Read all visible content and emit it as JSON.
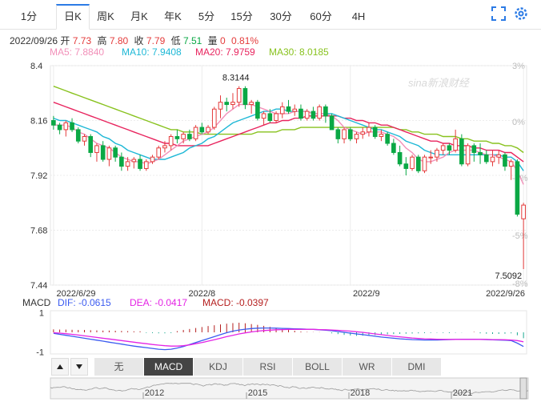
{
  "tabs": [
    "1分",
    "日K",
    "周K",
    "月K",
    "年K",
    "5分",
    "15分",
    "30分",
    "60分",
    "4H"
  ],
  "active_tab": "日K",
  "icons": {
    "fullscreen": "fullscreen-icon",
    "settings": "gear-icon",
    "prev": "triangle-up-icon",
    "next": "triangle-down-icon"
  },
  "quote": {
    "date": "2022/09/26",
    "open_label": "开",
    "open": "7.73",
    "high_label": "高",
    "high": "7.80",
    "close_label": "收",
    "close": "7.79",
    "low_label": "低",
    "low": "7.51",
    "volume_label": "量",
    "volume": "0",
    "change": "0.81%"
  },
  "ma_legend": [
    {
      "label": "MA5: 7.8840",
      "color": "#f290b9"
    },
    {
      "label": "MA10: 7.9408",
      "color": "#1eb8d6"
    },
    {
      "label": "MA20: 7.9759",
      "color": "#e8245e"
    },
    {
      "label": "MA30: 8.0185",
      "color": "#88c21e"
    }
  ],
  "watermark": "sina新浪财经",
  "macd_legend": [
    {
      "label": "MACD",
      "color": "#333333"
    },
    {
      "label": "DIF: -0.0615",
      "color": "#3b5bf0"
    },
    {
      "label": "DEA: -0.0417",
      "color": "#e424e4"
    },
    {
      "label": "MACD: -0.0397",
      "color": "#b51f1f"
    }
  ],
  "indicator_buttons": [
    "无",
    "MACD",
    "KDJ",
    "RSI",
    "BOLL",
    "WR",
    "DMI"
  ],
  "active_indicator": "MACD",
  "overview_years": [
    "2012",
    "2015",
    "2018",
    "2021"
  ],
  "chart_data": {
    "type": "candlestick",
    "y_axis_left": {
      "ticks": [
        "8.4",
        "8.16",
        "7.92",
        "7.68",
        "7.44"
      ],
      "range": [
        7.44,
        8.4
      ]
    },
    "y_axis_right": {
      "ticks": [
        "3%",
        "0%",
        "-3%",
        "-5%",
        "-8%"
      ]
    },
    "x_labels": [
      "2022/6/29",
      "2022/8",
      "2022/9",
      "2022/9/26"
    ],
    "annotations": {
      "max": "8.3144",
      "min": "7.5092"
    },
    "colors": {
      "up": "#e43b3b",
      "down": "#0aa845"
    },
    "candles": [
      [
        8.16,
        8.18,
        8.12,
        8.14
      ],
      [
        8.14,
        8.15,
        8.1,
        8.12
      ],
      [
        8.12,
        8.16,
        8.09,
        8.15
      ],
      [
        8.15,
        8.17,
        8.11,
        8.12
      ],
      [
        8.12,
        8.13,
        8.06,
        8.07
      ],
      [
        8.07,
        8.1,
        8.05,
        8.09
      ],
      [
        8.09,
        8.1,
        8.0,
        8.02
      ],
      [
        8.02,
        8.06,
        7.98,
        8.05
      ],
      [
        8.05,
        8.07,
        7.98,
        7.99
      ],
      [
        7.99,
        8.05,
        7.96,
        8.04
      ],
      [
        8.04,
        8.05,
        7.98,
        8.0
      ],
      [
        8.0,
        8.02,
        7.94,
        7.96
      ],
      [
        7.96,
        8.0,
        7.94,
        7.98
      ],
      [
        7.98,
        8.0,
        7.95,
        7.99
      ],
      [
        7.99,
        8.01,
        7.94,
        7.95
      ],
      [
        7.95,
        7.99,
        7.94,
        7.98
      ],
      [
        7.98,
        8.01,
        7.97,
        8.0
      ],
      [
        8.0,
        8.05,
        7.99,
        8.04
      ],
      [
        8.04,
        8.07,
        8.02,
        8.05
      ],
      [
        8.05,
        8.1,
        8.03,
        8.09
      ],
      [
        8.09,
        8.12,
        8.06,
        8.08
      ],
      [
        8.08,
        8.11,
        8.06,
        8.1
      ],
      [
        8.1,
        8.12,
        8.07,
        8.08
      ],
      [
        8.08,
        8.14,
        8.07,
        8.13
      ],
      [
        8.13,
        8.15,
        8.1,
        8.11
      ],
      [
        8.11,
        8.14,
        8.1,
        8.13
      ],
      [
        8.13,
        8.22,
        8.12,
        8.21
      ],
      [
        8.21,
        8.27,
        8.17,
        8.24
      ],
      [
        8.24,
        8.26,
        8.2,
        8.23
      ],
      [
        8.23,
        8.28,
        8.21,
        8.24
      ],
      [
        8.24,
        8.31,
        8.22,
        8.3
      ],
      [
        8.3,
        8.31,
        8.21,
        8.23
      ],
      [
        8.23,
        8.25,
        8.19,
        8.24
      ],
      [
        8.24,
        8.25,
        8.16,
        8.17
      ],
      [
        8.17,
        8.2,
        8.14,
        8.19
      ],
      [
        8.19,
        8.21,
        8.15,
        8.16
      ],
      [
        8.16,
        8.2,
        8.15,
        8.19
      ],
      [
        8.19,
        8.24,
        8.17,
        8.22
      ],
      [
        8.22,
        8.25,
        8.19,
        8.2
      ],
      [
        8.2,
        8.23,
        8.18,
        8.21
      ],
      [
        8.21,
        8.23,
        8.16,
        8.17
      ],
      [
        8.17,
        8.21,
        8.16,
        8.2
      ],
      [
        8.2,
        8.22,
        8.16,
        8.17
      ],
      [
        8.17,
        8.23,
        8.16,
        8.22
      ],
      [
        8.22,
        8.23,
        8.15,
        8.18
      ],
      [
        8.18,
        8.19,
        8.12,
        8.12
      ],
      [
        8.12,
        8.13,
        8.06,
        8.08
      ],
      [
        8.08,
        8.13,
        8.06,
        8.12
      ],
      [
        8.12,
        8.13,
        8.07,
        8.08
      ],
      [
        8.08,
        8.11,
        8.06,
        8.1
      ],
      [
        8.1,
        8.13,
        8.08,
        8.11
      ],
      [
        8.11,
        8.15,
        8.09,
        8.13
      ],
      [
        8.13,
        8.14,
        8.08,
        8.09
      ],
      [
        8.09,
        8.12,
        8.07,
        8.1
      ],
      [
        8.1,
        8.11,
        8.05,
        8.06
      ],
      [
        8.06,
        8.08,
        8.01,
        8.02
      ],
      [
        8.02,
        8.05,
        7.96,
        7.97
      ],
      [
        7.97,
        8.0,
        7.92,
        7.95
      ],
      [
        7.95,
        8.01,
        7.94,
        8.0
      ],
      [
        8.0,
        8.01,
        7.93,
        7.94
      ],
      [
        7.94,
        8.01,
        7.93,
        8.0
      ],
      [
        8.0,
        8.03,
        7.97,
        8.0
      ],
      [
        8.0,
        8.04,
        7.98,
        8.03
      ],
      [
        8.03,
        8.06,
        8.01,
        8.05
      ],
      [
        8.05,
        8.06,
        8.01,
        8.03
      ],
      [
        8.03,
        8.12,
        8.02,
        8.08
      ],
      [
        8.08,
        8.1,
        7.96,
        7.97
      ],
      [
        7.97,
        8.06,
        7.96,
        8.05
      ],
      [
        8.05,
        8.06,
        7.98,
        8.02
      ],
      [
        8.02,
        8.06,
        7.97,
        8.01
      ],
      [
        8.01,
        8.03,
        7.97,
        7.98
      ],
      [
        7.98,
        8.03,
        7.96,
        8.0
      ],
      [
        8.0,
        8.03,
        7.97,
        8.01
      ],
      [
        8.01,
        8.02,
        7.94,
        7.96
      ],
      [
        7.96,
        7.99,
        7.9,
        7.98
      ],
      [
        7.98,
        7.99,
        7.74,
        7.75
      ],
      [
        7.73,
        7.8,
        7.51,
        7.79
      ]
    ],
    "ma5": [
      8.14,
      8.14,
      8.14,
      8.13,
      8.11,
      8.1,
      8.08,
      8.06,
      8.05,
      8.04,
      8.02,
      8.0,
      7.99,
      7.98,
      7.98,
      7.97,
      7.98,
      7.99,
      8.01,
      8.03,
      8.05,
      8.07,
      8.08,
      8.09,
      8.1,
      8.11,
      8.13,
      8.16,
      8.19,
      8.21,
      8.23,
      8.23,
      8.23,
      8.22,
      8.21,
      8.2,
      8.19,
      8.19,
      8.19,
      8.2,
      8.2,
      8.2,
      8.19,
      8.19,
      8.19,
      8.18,
      8.16,
      8.13,
      8.12,
      8.11,
      8.1,
      8.11,
      8.11,
      8.11,
      8.1,
      8.09,
      8.07,
      8.04,
      8.02,
      7.99,
      7.98,
      7.98,
      7.99,
      8.0,
      8.02,
      8.03,
      8.03,
      8.03,
      8.03,
      8.02,
      8.01,
      8.01,
      8.0,
      7.99,
      7.98,
      7.94,
      7.88
    ],
    "ma10": [
      8.17,
      8.16,
      8.16,
      8.15,
      8.14,
      8.13,
      8.12,
      8.11,
      8.09,
      8.08,
      8.06,
      8.05,
      8.03,
      8.02,
      8.01,
      8.0,
      7.99,
      7.99,
      7.99,
      8.0,
      8.01,
      8.02,
      8.04,
      8.05,
      8.06,
      8.08,
      8.09,
      8.11,
      8.13,
      8.15,
      8.16,
      8.17,
      8.18,
      8.19,
      8.2,
      8.2,
      8.21,
      8.21,
      8.2,
      8.2,
      8.2,
      8.2,
      8.19,
      8.19,
      8.19,
      8.19,
      8.18,
      8.17,
      8.16,
      8.15,
      8.14,
      8.13,
      8.12,
      8.12,
      8.11,
      8.1,
      8.09,
      8.07,
      8.06,
      8.05,
      8.03,
      8.02,
      8.01,
      8.01,
      8.01,
      8.01,
      8.01,
      8.01,
      8.01,
      8.01,
      8.01,
      8.01,
      8.01,
      8.0,
      8.0,
      7.98,
      7.94
    ],
    "ma20": [
      8.24,
      8.23,
      8.22,
      8.21,
      8.2,
      8.19,
      8.18,
      8.17,
      8.16,
      8.15,
      8.14,
      8.13,
      8.12,
      8.11,
      8.1,
      8.09,
      8.08,
      8.07,
      8.06,
      8.06,
      8.05,
      8.05,
      8.05,
      8.05,
      8.05,
      8.05,
      8.06,
      8.07,
      8.08,
      8.09,
      8.1,
      8.11,
      8.12,
      8.13,
      8.14,
      8.15,
      8.15,
      8.16,
      8.16,
      8.17,
      8.17,
      8.18,
      8.18,
      8.18,
      8.18,
      8.18,
      8.18,
      8.17,
      8.17,
      8.16,
      8.16,
      8.15,
      8.15,
      8.14,
      8.14,
      8.13,
      8.12,
      8.11,
      8.1,
      8.09,
      8.08,
      8.07,
      8.07,
      8.06,
      8.06,
      8.05,
      8.05,
      8.05,
      8.04,
      8.04,
      8.03,
      8.03,
      8.03,
      8.02,
      8.02,
      8.0,
      7.98
    ],
    "ma30": [
      8.31,
      8.3,
      8.29,
      8.28,
      8.27,
      8.26,
      8.25,
      8.24,
      8.23,
      8.22,
      8.21,
      8.2,
      8.19,
      8.18,
      8.17,
      8.16,
      8.15,
      8.14,
      8.13,
      8.12,
      8.12,
      8.11,
      8.11,
      8.11,
      8.1,
      8.1,
      8.1,
      8.1,
      8.1,
      8.1,
      8.1,
      8.1,
      8.1,
      8.11,
      8.11,
      8.11,
      8.11,
      8.12,
      8.12,
      8.12,
      8.13,
      8.13,
      8.13,
      8.13,
      8.13,
      8.13,
      8.13,
      8.13,
      8.13,
      8.13,
      8.13,
      8.13,
      8.13,
      8.13,
      8.13,
      8.13,
      8.12,
      8.12,
      8.11,
      8.11,
      8.1,
      8.1,
      8.1,
      8.09,
      8.09,
      8.09,
      8.08,
      8.08,
      8.07,
      8.07,
      8.07,
      8.06,
      8.06,
      8.05,
      8.05,
      8.04,
      8.02
    ],
    "macd_panel": {
      "y_ticks": [
        "1",
        "-1"
      ],
      "histogram": [
        0.15,
        0.14,
        0.14,
        0.13,
        0.12,
        0.12,
        0.11,
        0.1,
        0.09,
        0.09,
        0.08,
        0.07,
        0.06,
        0.05,
        0.05,
        -0.03,
        -0.04,
        -0.05,
        -0.05,
        -0.04,
        0.06,
        0.12,
        0.17,
        0.22,
        0.27,
        0.32,
        0.36,
        0.4,
        0.44,
        0.47,
        0.49,
        0.46,
        0.42,
        0.38,
        0.33,
        0.28,
        0.23,
        0.17,
        0.12,
        0.08,
        0.04,
        0.02,
        0.01,
        0.01,
        0.0,
        -0.05,
        -0.09,
        -0.13,
        -0.16,
        -0.18,
        -0.17,
        -0.16,
        -0.14,
        -0.12,
        -0.1,
        -0.09,
        -0.08,
        -0.07,
        -0.06,
        -0.05,
        -0.04,
        -0.03,
        -0.02,
        -0.03,
        -0.04,
        -0.02,
        -0.01,
        0.0,
        0.02,
        -0.05,
        -0.07,
        -0.08,
        -0.08,
        -0.07,
        -0.05,
        -0.15,
        -0.3
      ],
      "dif": [
        -0.05,
        -0.1,
        -0.15,
        -0.2,
        -0.25,
        -0.3,
        -0.35,
        -0.4,
        -0.45,
        -0.5,
        -0.55,
        -0.6,
        -0.65,
        -0.7,
        -0.74,
        -0.78,
        -0.82,
        -0.86,
        -0.88,
        -0.86,
        -0.8,
        -0.72,
        -0.62,
        -0.52,
        -0.42,
        -0.32,
        -0.22,
        -0.12,
        -0.02,
        0.06,
        0.12,
        0.16,
        0.19,
        0.21,
        0.22,
        0.22,
        0.21,
        0.2,
        0.19,
        0.18,
        0.17,
        0.16,
        0.15,
        0.13,
        0.11,
        0.08,
        0.04,
        0.0,
        -0.04,
        -0.08,
        -0.12,
        -0.16,
        -0.2,
        -0.24,
        -0.27,
        -0.3,
        -0.33,
        -0.35,
        -0.37,
        -0.38,
        -0.39,
        -0.39,
        -0.39,
        -0.38,
        -0.37,
        -0.36,
        -0.35,
        -0.35,
        -0.35,
        -0.36,
        -0.37,
        -0.38,
        -0.39,
        -0.4,
        -0.42,
        -0.55,
        -0.72
      ],
      "dea": [
        -0.02,
        -0.04,
        -0.07,
        -0.1,
        -0.14,
        -0.18,
        -0.22,
        -0.26,
        -0.3,
        -0.34,
        -0.38,
        -0.42,
        -0.46,
        -0.5,
        -0.54,
        -0.58,
        -0.62,
        -0.65,
        -0.68,
        -0.7,
        -0.7,
        -0.68,
        -0.64,
        -0.58,
        -0.52,
        -0.45,
        -0.38,
        -0.3,
        -0.22,
        -0.15,
        -0.08,
        -0.03,
        0.02,
        0.06,
        0.09,
        0.11,
        0.13,
        0.14,
        0.15,
        0.15,
        0.15,
        0.15,
        0.15,
        0.14,
        0.13,
        0.12,
        0.1,
        0.08,
        0.06,
        0.03,
        0.0,
        -0.04,
        -0.08,
        -0.12,
        -0.16,
        -0.2,
        -0.23,
        -0.26,
        -0.29,
        -0.31,
        -0.33,
        -0.34,
        -0.35,
        -0.36,
        -0.36,
        -0.36,
        -0.36,
        -0.36,
        -0.36,
        -0.36,
        -0.36,
        -0.37,
        -0.37,
        -0.38,
        -0.39,
        -0.42,
        -0.48
      ]
    }
  }
}
